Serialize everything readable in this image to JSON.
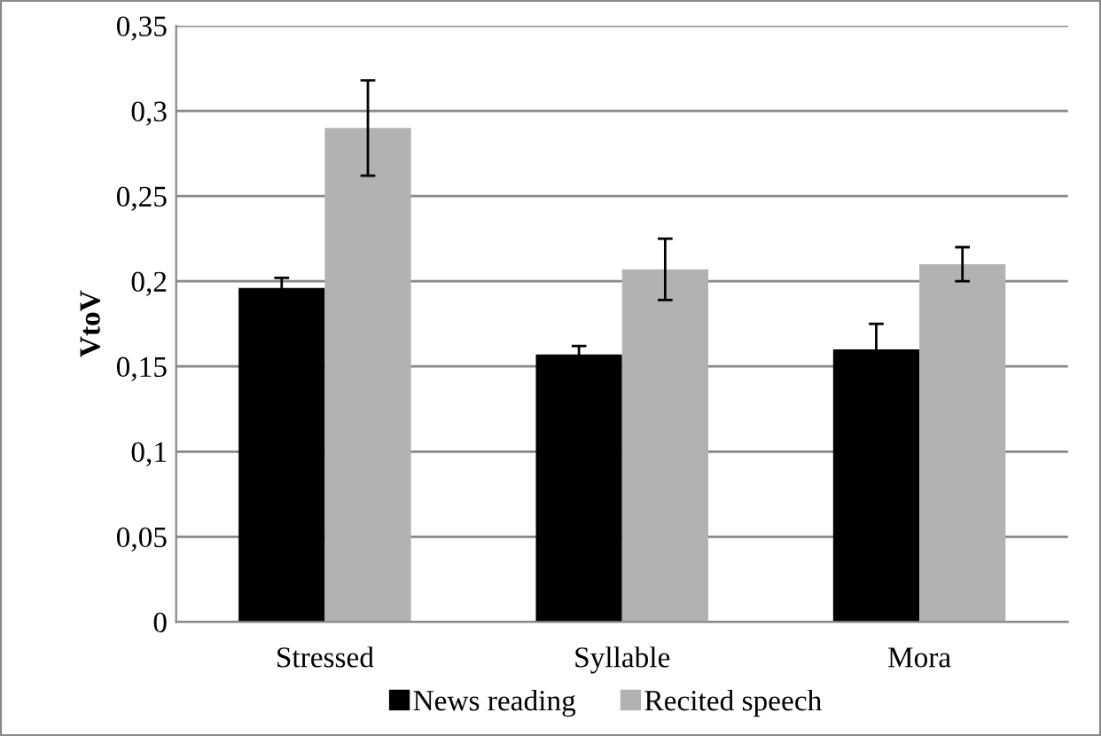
{
  "chart_data": {
    "type": "bar",
    "ylabel": "VtoV",
    "categories": [
      "Stressed",
      "Syllable",
      "Mora"
    ],
    "series": [
      {
        "name": "News reading",
        "color": "#000000",
        "values": [
          0.196,
          0.157,
          0.16
        ],
        "errors": [
          0.006,
          0.005,
          0.015
        ]
      },
      {
        "name": "Recited speech",
        "color": "#b2b2b2",
        "values": [
          0.29,
          0.207,
          0.21
        ],
        "errors": [
          0.028,
          0.018,
          0.01
        ]
      }
    ],
    "ylim": [
      0,
      0.35
    ],
    "yticks": [
      0,
      {
        "value": 0.05,
        "label": "0,05"
      },
      {
        "value": 0.1,
        "label": "0,1"
      },
      {
        "value": 0.15,
        "label": "0,15"
      },
      {
        "value": 0.2,
        "label": "0,2"
      },
      {
        "value": 0.25,
        "label": "0,25"
      },
      {
        "value": 0.3,
        "label": "0,3"
      },
      {
        "value": 0.35,
        "label": "0,35"
      }
    ],
    "grid": "y",
    "legend": "bottom"
  }
}
